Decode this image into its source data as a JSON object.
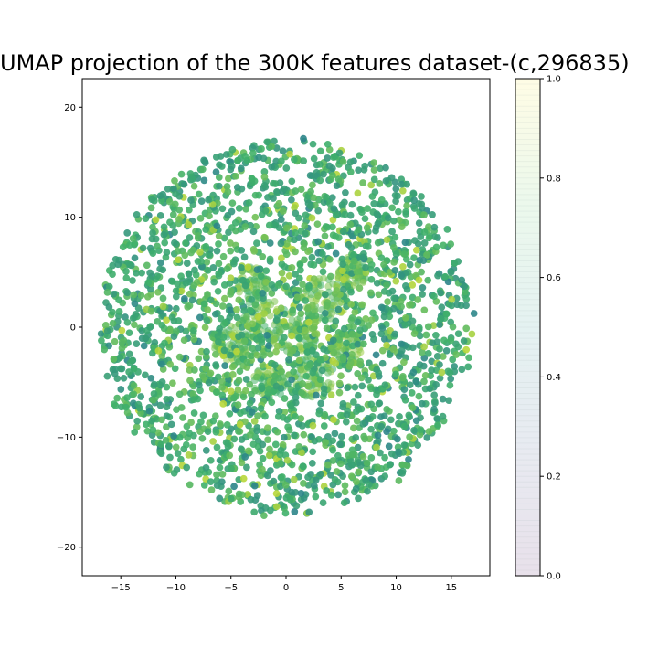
{
  "chart_data": {
    "type": "scatter",
    "title": "UMAP projection of the 300K features dataset-(c,296835)",
    "xlabel": "",
    "ylabel": "",
    "xlim": [
      -18.5,
      18.5
    ],
    "ylim": [
      -22.6,
      22.6
    ],
    "x_ticks": [
      -15,
      -10,
      -5,
      0,
      5,
      10,
      15
    ],
    "y_ticks": [
      -20,
      -10,
      0,
      10,
      20
    ],
    "x_tick_labels": [
      "−15",
      "−10",
      "−5",
      "0",
      "5",
      "10",
      "15"
    ],
    "y_tick_labels": [
      "−20",
      "−10",
      "0",
      "10",
      "20"
    ],
    "cloud": {
      "center": [
        0,
        0
      ],
      "radius": 17,
      "approx_points": 296835
    },
    "colormap": "viridis",
    "colorbar": {
      "range": [
        0.0,
        1.0
      ],
      "ticks": [
        0.0,
        0.2,
        0.4,
        0.6,
        0.8,
        1.0
      ],
      "tick_labels": [
        "0.0",
        "0.2",
        "0.4",
        "0.6",
        "0.8",
        "1.0"
      ]
    },
    "colors": {
      "low": "#2a7f8e",
      "mid": "#3fb06a",
      "high": "#b9d73a"
    }
  }
}
